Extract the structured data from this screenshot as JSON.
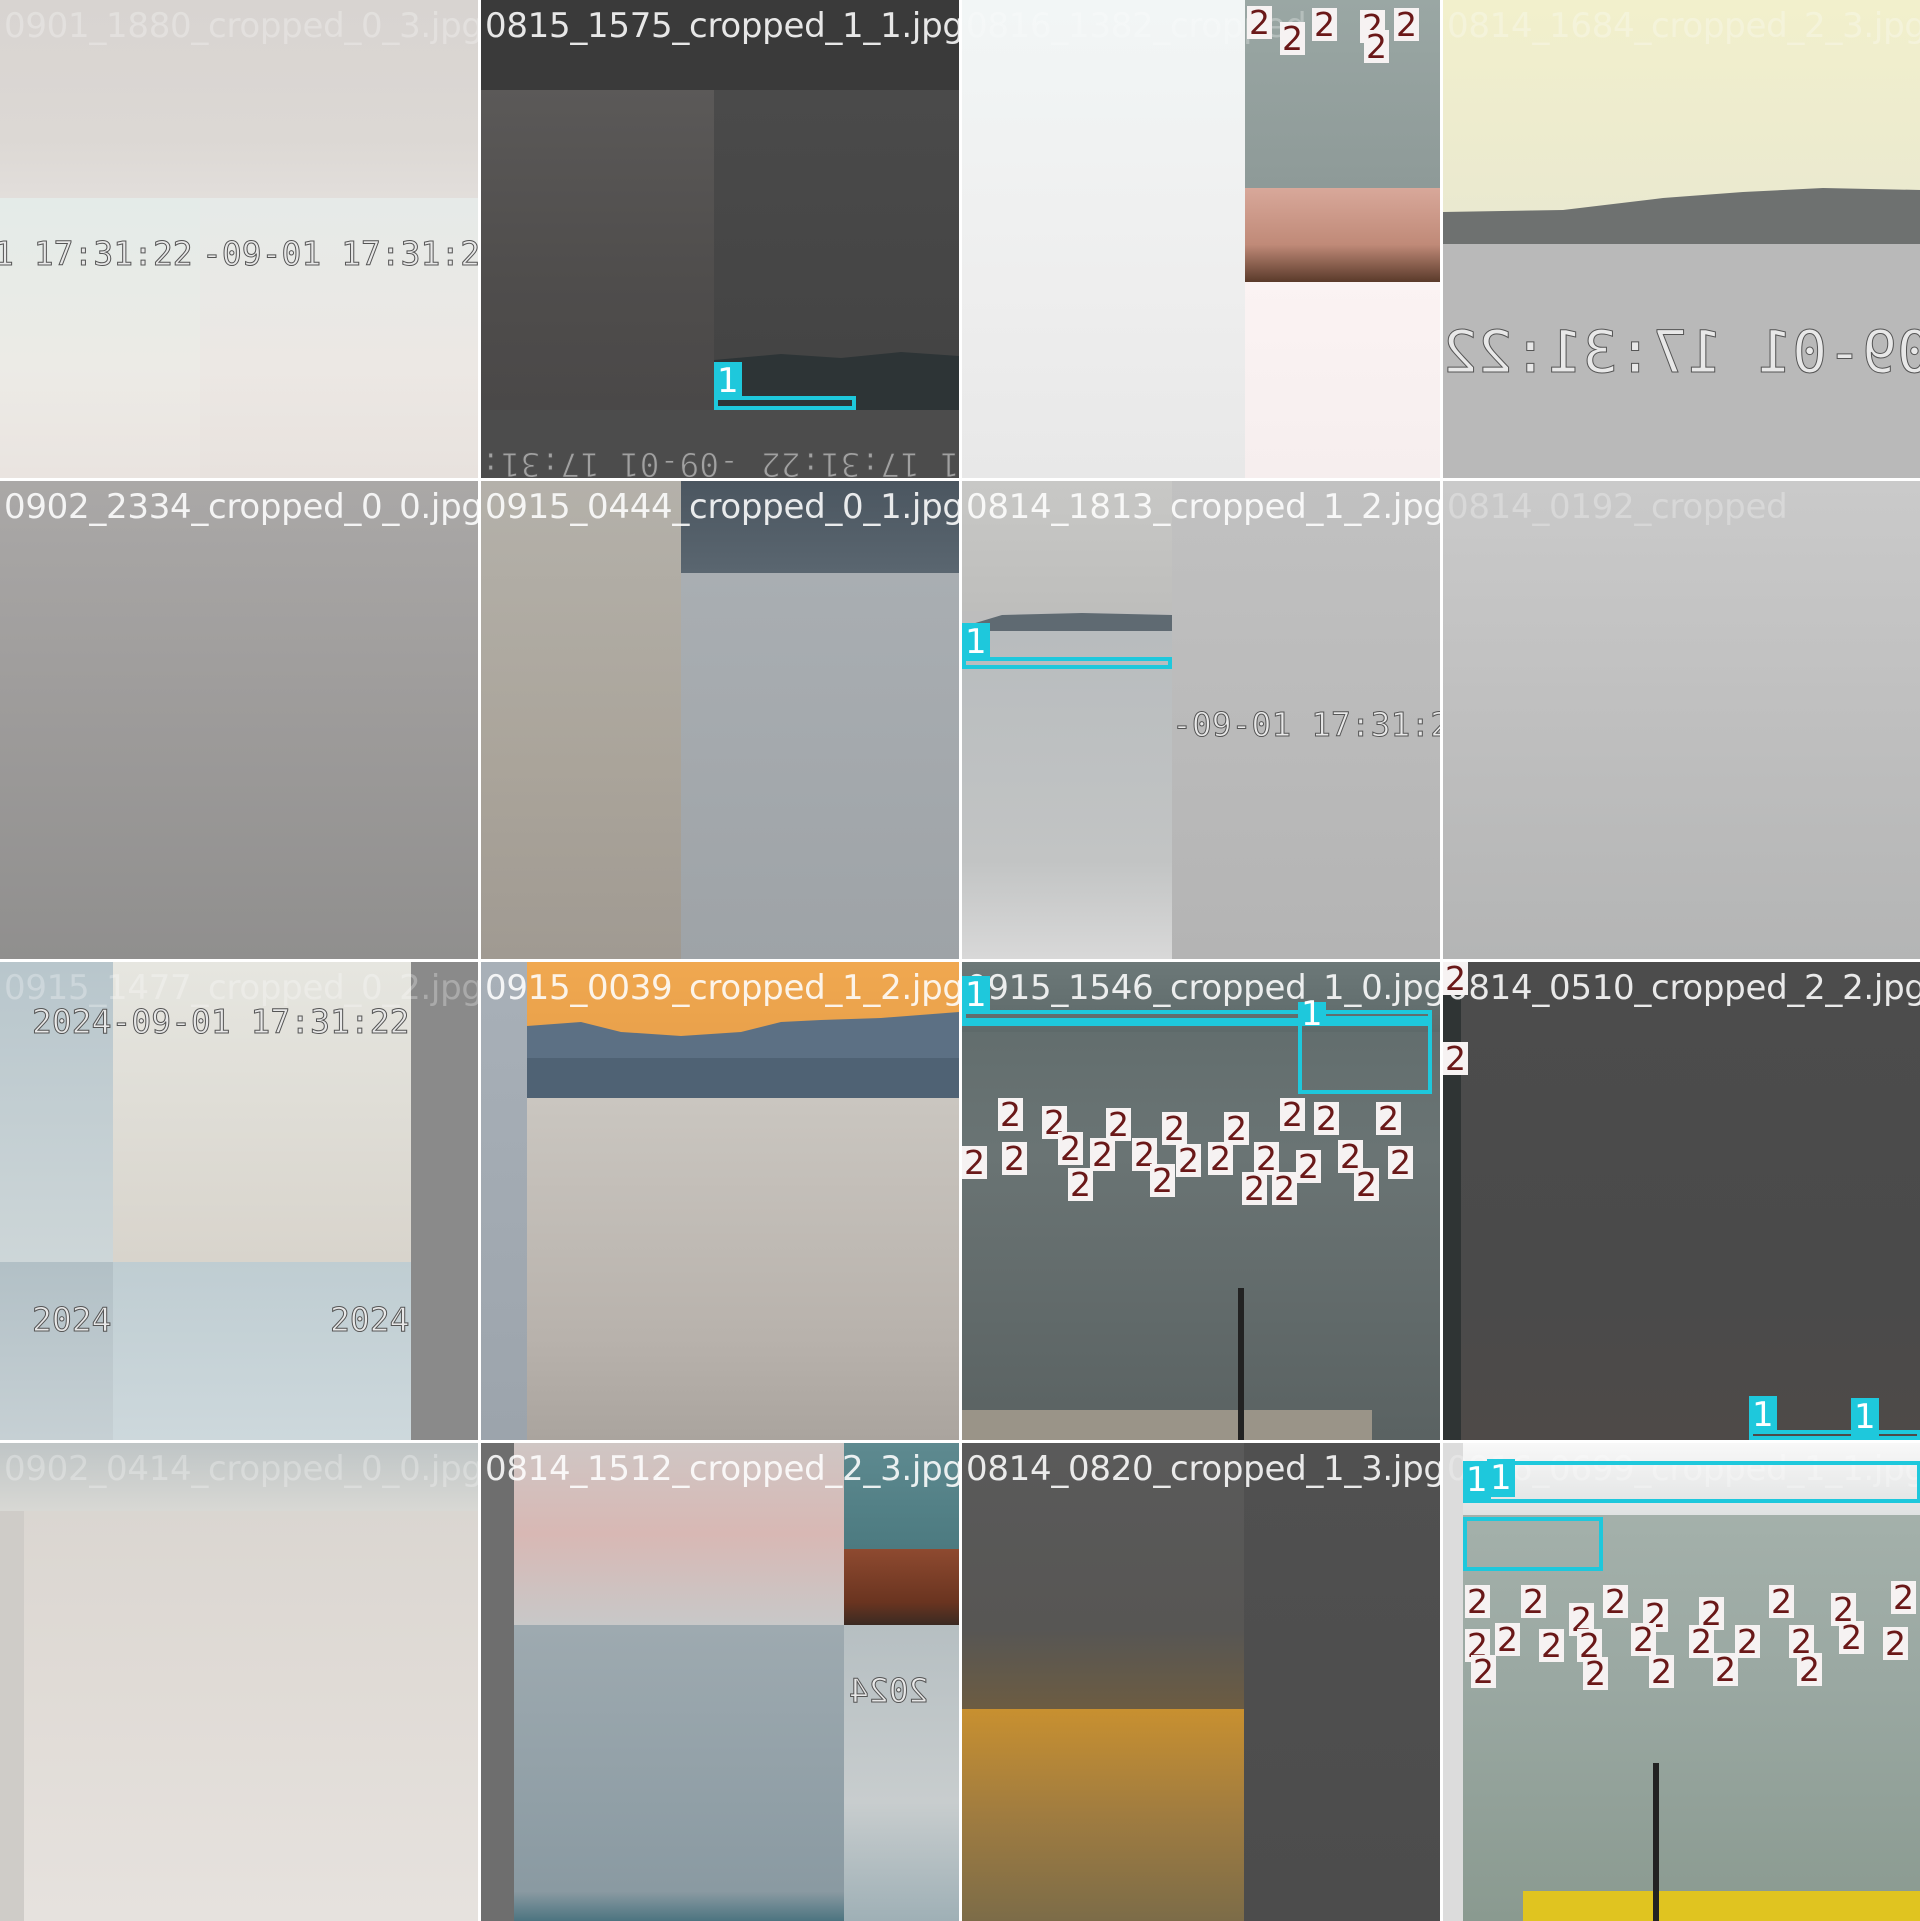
{
  "mosaic": {
    "tiles": [
      {
        "filename": "0901_1880_cropped_0_3.jpg",
        "stamps": [
          "1 17:31:22",
          "-09-01 17:31:22"
        ]
      },
      {
        "filename": "0815_1575_cropped_1_1.jpg",
        "stamps": [
          "-09-01 17:31:22",
          "01 17:31:22"
        ],
        "labels": [
          "1"
        ]
      },
      {
        "filename": "0816_1382_cropped",
        "labels": [
          "2"
        ]
      },
      {
        "filename": "0814_1684_cropped_2_3.jpg",
        "stamps": [
          "09-01 17:31:22"
        ]
      },
      {
        "filename": "0902_2334_cropped_0_0.jpg"
      },
      {
        "filename": "0915_0444_cropped_0_1.jpg"
      },
      {
        "filename": "0814_1813_cropped_1_2.jpg",
        "stamps": [
          "-09-01 17:31:22"
        ],
        "labels": [
          "1"
        ]
      },
      {
        "filename": "0814_0192_cropped"
      },
      {
        "filename": "0915_1477_cropped_0_2.jpg",
        "stamps": [
          "2024-09-01 17:31:22",
          "2024",
          "2024"
        ]
      },
      {
        "filename": "0915_0039_cropped_1_2.jpg"
      },
      {
        "filename": "0915_1546_cropped_1_0.jpg",
        "labels": [
          "1",
          "2"
        ]
      },
      {
        "filename": "0814_0510_cropped_2_2.jpg",
        "labels": [
          "1",
          "1",
          "2",
          "2"
        ]
      },
      {
        "filename": "0902_0414_cropped_0_0.jpg"
      },
      {
        "filename": "0814_1512_cropped_2_3.jpg",
        "stamps": [
          "2024"
        ]
      },
      {
        "filename": "0814_0820_cropped_1_3.jpg"
      },
      {
        "filename": "0916_0699_cropped_1_1.jpg",
        "labels": [
          "1",
          "1",
          "2"
        ]
      }
    ]
  },
  "colors": {
    "class1_box": "#1ec8dc",
    "class2_label": "#6a1818"
  }
}
